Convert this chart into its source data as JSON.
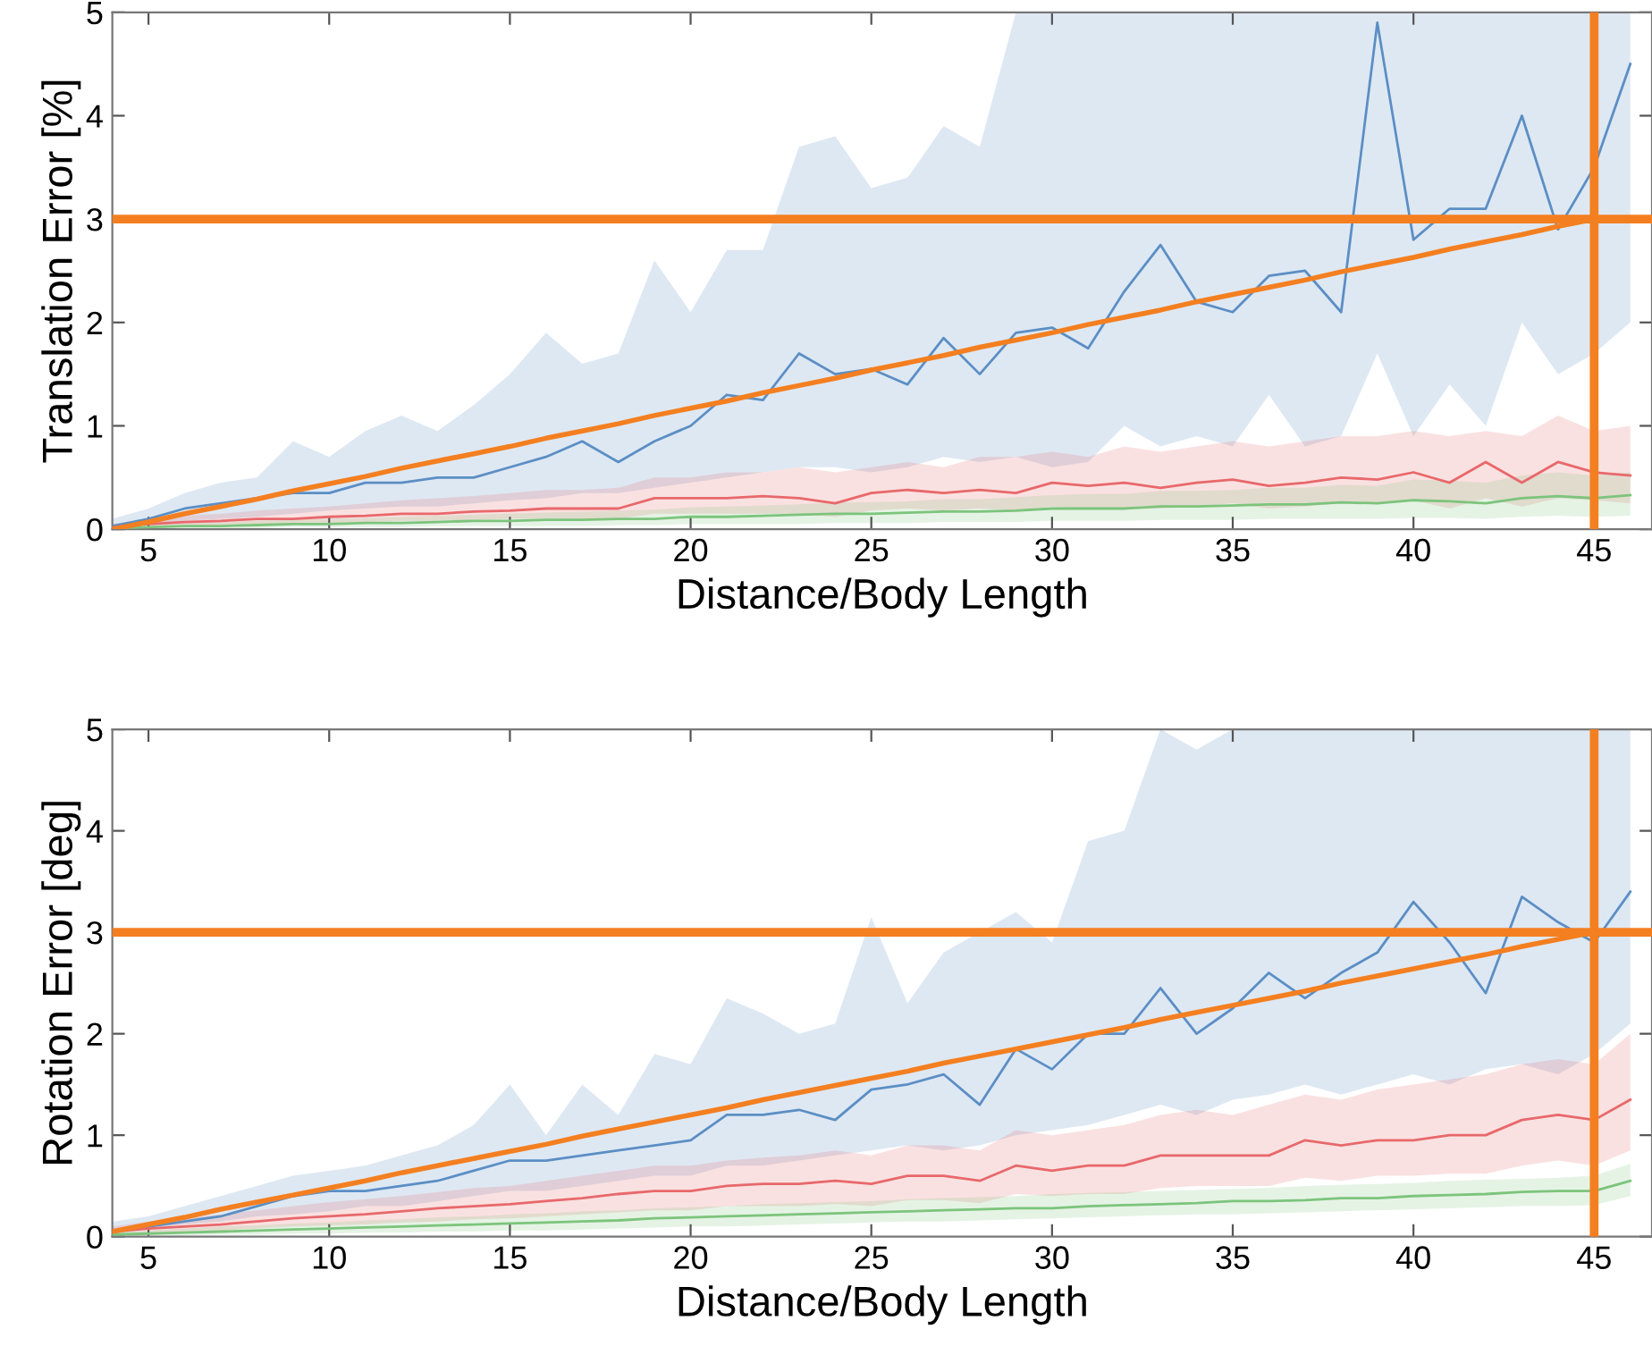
{
  "chart_data": [
    {
      "type": "line",
      "xlabel": "Distance/Body Length",
      "ylabel": "Translation Error [%]",
      "xlim": [
        4,
        46.6
      ],
      "ylim": [
        0,
        5
      ],
      "xticks": [
        5,
        10,
        15,
        20,
        25,
        30,
        35,
        40,
        45
      ],
      "yticks": [
        0,
        1,
        2,
        3,
        4,
        5
      ],
      "grid": false,
      "x": [
        4,
        5,
        6,
        7,
        8,
        9,
        10,
        11,
        12,
        13,
        14,
        15,
        16,
        17,
        18,
        19,
        20,
        21,
        22,
        23,
        24,
        25,
        26,
        27,
        28,
        29,
        30,
        31,
        32,
        33,
        34,
        35,
        36,
        37,
        38,
        39,
        40,
        41,
        42,
        43,
        44,
        45,
        46
      ],
      "series": [
        {
          "color": "#5b8ec4",
          "values": [
            0.03,
            0.1,
            0.2,
            0.25,
            0.3,
            0.35,
            0.35,
            0.45,
            0.45,
            0.5,
            0.5,
            0.6,
            0.7,
            0.85,
            0.65,
            0.85,
            1.0,
            1.3,
            1.25,
            1.7,
            1.5,
            1.55,
            1.4,
            1.85,
            1.5,
            1.9,
            1.95,
            1.75,
            2.3,
            2.75,
            2.2,
            2.1,
            2.45,
            2.5,
            2.1,
            4.9,
            2.8,
            3.1,
            3.1,
            4.0,
            2.9,
            3.5,
            4.5
          ],
          "lower": [
            0,
            0.05,
            0.08,
            0.1,
            0.12,
            0.15,
            0.18,
            0.2,
            0.22,
            0.22,
            0.25,
            0.28,
            0.3,
            0.35,
            0.35,
            0.4,
            0.45,
            0.5,
            0.55,
            0.6,
            0.6,
            0.55,
            0.6,
            0.7,
            0.65,
            0.7,
            0.6,
            0.65,
            1.0,
            0.8,
            0.9,
            0.8,
            1.3,
            0.8,
            0.9,
            1.7,
            0.9,
            1.4,
            1.0,
            2.0,
            1.5,
            1.7,
            2.0
          ],
          "upper": [
            0.1,
            0.2,
            0.35,
            0.45,
            0.5,
            0.85,
            0.7,
            0.95,
            1.1,
            0.95,
            1.2,
            1.5,
            1.9,
            1.6,
            1.7,
            2.6,
            2.1,
            2.7,
            2.7,
            3.7,
            3.8,
            3.3,
            3.4,
            3.9,
            3.7,
            5,
            5,
            5,
            5,
            5,
            5,
            5,
            5,
            5,
            5,
            5,
            5,
            5,
            5,
            5,
            5,
            5,
            5
          ]
        },
        {
          "color": "#e8686b",
          "values": [
            0.02,
            0.05,
            0.07,
            0.08,
            0.1,
            0.1,
            0.12,
            0.13,
            0.15,
            0.15,
            0.17,
            0.18,
            0.2,
            0.2,
            0.2,
            0.3,
            0.3,
            0.3,
            0.32,
            0.3,
            0.25,
            0.35,
            0.38,
            0.35,
            0.38,
            0.35,
            0.45,
            0.42,
            0.45,
            0.4,
            0.45,
            0.48,
            0.42,
            0.45,
            0.5,
            0.48,
            0.55,
            0.45,
            0.65,
            0.45,
            0.65,
            0.55,
            0.52
          ],
          "lower": [
            0,
            0.02,
            0.03,
            0.04,
            0.05,
            0.05,
            0.06,
            0.07,
            0.08,
            0.08,
            0.09,
            0.1,
            0.1,
            0.1,
            0.1,
            0.15,
            0.15,
            0.15,
            0.15,
            0.15,
            0.12,
            0.18,
            0.2,
            0.18,
            0.2,
            0.18,
            0.22,
            0.2,
            0.2,
            0.2,
            0.22,
            0.25,
            0.2,
            0.22,
            0.25,
            0.25,
            0.28,
            0.2,
            0.3,
            0.22,
            0.3,
            0.28,
            0.25
          ],
          "upper": [
            0.05,
            0.1,
            0.13,
            0.15,
            0.18,
            0.2,
            0.22,
            0.25,
            0.28,
            0.3,
            0.32,
            0.35,
            0.38,
            0.38,
            0.4,
            0.5,
            0.5,
            0.55,
            0.55,
            0.6,
            0.55,
            0.6,
            0.65,
            0.6,
            0.7,
            0.7,
            0.75,
            0.7,
            0.8,
            0.75,
            0.8,
            0.85,
            0.8,
            0.85,
            0.9,
            0.9,
            0.95,
            0.9,
            0.95,
            0.9,
            1.1,
            0.95,
            1.0
          ]
        },
        {
          "color": "#7cc47c",
          "values": [
            0.01,
            0.02,
            0.03,
            0.03,
            0.04,
            0.05,
            0.05,
            0.06,
            0.06,
            0.07,
            0.08,
            0.08,
            0.09,
            0.09,
            0.1,
            0.1,
            0.12,
            0.12,
            0.13,
            0.14,
            0.15,
            0.15,
            0.16,
            0.17,
            0.17,
            0.18,
            0.2,
            0.2,
            0.2,
            0.22,
            0.22,
            0.23,
            0.24,
            0.24,
            0.26,
            0.25,
            0.28,
            0.27,
            0.25,
            0.3,
            0.32,
            0.3,
            0.33
          ],
          "lower": [
            0,
            0,
            0.01,
            0.01,
            0.01,
            0.02,
            0.02,
            0.02,
            0.02,
            0.03,
            0.03,
            0.03,
            0.03,
            0.03,
            0.04,
            0.04,
            0.05,
            0.05,
            0.05,
            0.05,
            0.06,
            0.06,
            0.06,
            0.07,
            0.07,
            0.07,
            0.08,
            0.08,
            0.08,
            0.09,
            0.09,
            0.09,
            0.1,
            0.1,
            0.1,
            0.1,
            0.11,
            0.11,
            0.1,
            0.12,
            0.13,
            0.12,
            0.13
          ],
          "upper": [
            0.03,
            0.05,
            0.06,
            0.07,
            0.08,
            0.09,
            0.1,
            0.11,
            0.12,
            0.13,
            0.14,
            0.15,
            0.16,
            0.17,
            0.18,
            0.19,
            0.21,
            0.22,
            0.23,
            0.24,
            0.26,
            0.26,
            0.27,
            0.29,
            0.29,
            0.31,
            0.33,
            0.34,
            0.34,
            0.37,
            0.37,
            0.38,
            0.4,
            0.4,
            0.43,
            0.42,
            0.48,
            0.47,
            0.45,
            0.52,
            0.55,
            0.52,
            0.55
          ]
        },
        {
          "type": "line",
          "color": "#f47f20",
          "values": [
            0,
            0.07,
            0.15,
            0.22,
            0.29,
            0.37,
            0.44,
            0.51,
            0.59,
            0.66,
            0.73,
            0.8,
            0.88,
            0.95,
            1.02,
            1.1,
            1.17,
            1.24,
            1.32,
            1.39,
            1.46,
            1.54,
            1.61,
            1.68,
            1.76,
            1.83,
            1.9,
            1.98,
            2.05,
            2.12,
            2.2,
            2.27,
            2.34,
            2.41,
            2.49,
            2.56,
            2.63,
            2.71,
            2.78,
            2.85,
            2.93,
            3.0,
            null
          ]
        }
      ],
      "ref_lines": [
        {
          "axis": "y",
          "value": 3,
          "color": "#f47f20"
        },
        {
          "axis": "x",
          "value": 45,
          "color": "#f47f20"
        }
      ]
    },
    {
      "type": "line",
      "xlabel": "Distance/Body Length",
      "ylabel": "Rotation Error [deg]",
      "xlim": [
        4,
        46.6
      ],
      "ylim": [
        0,
        5
      ],
      "xticks": [
        5,
        10,
        15,
        20,
        25,
        30,
        35,
        40,
        45
      ],
      "yticks": [
        0,
        1,
        2,
        3,
        4,
        5
      ],
      "grid": false,
      "x": [
        4,
        5,
        6,
        7,
        8,
        9,
        10,
        11,
        12,
        13,
        14,
        15,
        16,
        17,
        18,
        19,
        20,
        21,
        22,
        23,
        24,
        25,
        26,
        27,
        28,
        29,
        30,
        31,
        32,
        33,
        34,
        35,
        36,
        37,
        38,
        39,
        40,
        41,
        42,
        43,
        44,
        45,
        46
      ],
      "series": [
        {
          "color": "#5b8ec4",
          "values": [
            0.05,
            0.1,
            0.15,
            0.2,
            0.3,
            0.4,
            0.45,
            0.45,
            0.5,
            0.55,
            0.65,
            0.75,
            0.75,
            0.8,
            0.85,
            0.9,
            0.95,
            1.2,
            1.2,
            1.25,
            1.15,
            1.45,
            1.5,
            1.6,
            1.3,
            1.85,
            1.65,
            2.0,
            2.0,
            2.45,
            2.0,
            2.25,
            2.6,
            2.35,
            2.6,
            2.8,
            3.3,
            2.9,
            2.4,
            3.35,
            3.1,
            2.9,
            3.4
          ],
          "lower": [
            0.02,
            0.08,
            0.12,
            0.15,
            0.2,
            0.22,
            0.25,
            0.3,
            0.3,
            0.35,
            0.4,
            0.45,
            0.45,
            0.5,
            0.55,
            0.6,
            0.6,
            0.7,
            0.7,
            0.75,
            0.8,
            0.85,
            0.9,
            0.85,
            0.9,
            1.0,
            1.05,
            1.1,
            1.2,
            1.3,
            1.2,
            1.35,
            1.4,
            1.5,
            1.4,
            1.5,
            1.6,
            1.5,
            1.65,
            1.7,
            1.6,
            1.8,
            2.1
          ],
          "upper": [
            0.15,
            0.2,
            0.3,
            0.4,
            0.5,
            0.6,
            0.65,
            0.7,
            0.8,
            0.9,
            1.1,
            1.5,
            1.0,
            1.5,
            1.2,
            1.8,
            1.7,
            2.35,
            2.2,
            2.0,
            2.1,
            3.15,
            2.3,
            2.8,
            3.0,
            3.2,
            2.9,
            3.9,
            4.0,
            5,
            4.8,
            5,
            5,
            5,
            5,
            5,
            5,
            5,
            5,
            5,
            5,
            5,
            5
          ]
        },
        {
          "color": "#e8686b",
          "values": [
            0.05,
            0.08,
            0.1,
            0.12,
            0.15,
            0.18,
            0.2,
            0.22,
            0.25,
            0.28,
            0.3,
            0.32,
            0.35,
            0.38,
            0.42,
            0.45,
            0.45,
            0.5,
            0.52,
            0.52,
            0.55,
            0.52,
            0.6,
            0.6,
            0.55,
            0.7,
            0.65,
            0.7,
            0.7,
            0.8,
            0.8,
            0.8,
            0.8,
            0.95,
            0.9,
            0.95,
            0.95,
            1.0,
            1.0,
            1.15,
            1.2,
            1.15,
            1.35
          ],
          "lower": [
            0.02,
            0.04,
            0.05,
            0.06,
            0.08,
            0.1,
            0.11,
            0.12,
            0.14,
            0.15,
            0.17,
            0.18,
            0.2,
            0.22,
            0.24,
            0.26,
            0.26,
            0.3,
            0.3,
            0.3,
            0.32,
            0.3,
            0.36,
            0.36,
            0.33,
            0.42,
            0.4,
            0.42,
            0.42,
            0.48,
            0.5,
            0.5,
            0.5,
            0.58,
            0.55,
            0.6,
            0.6,
            0.62,
            0.62,
            0.7,
            0.75,
            0.7,
            0.85
          ],
          "upper": [
            0.1,
            0.15,
            0.18,
            0.22,
            0.26,
            0.3,
            0.34,
            0.37,
            0.4,
            0.44,
            0.48,
            0.5,
            0.55,
            0.6,
            0.65,
            0.7,
            0.7,
            0.75,
            0.78,
            0.8,
            0.85,
            0.8,
            0.9,
            0.9,
            0.85,
            1.05,
            1.0,
            1.05,
            1.1,
            1.2,
            1.25,
            1.2,
            1.3,
            1.4,
            1.35,
            1.45,
            1.5,
            1.55,
            1.6,
            1.7,
            1.75,
            1.7,
            2.0
          ]
        },
        {
          "color": "#7cc47c",
          "values": [
            0.02,
            0.03,
            0.04,
            0.05,
            0.06,
            0.07,
            0.08,
            0.09,
            0.1,
            0.11,
            0.12,
            0.13,
            0.14,
            0.15,
            0.16,
            0.18,
            0.19,
            0.2,
            0.21,
            0.22,
            0.23,
            0.24,
            0.25,
            0.26,
            0.27,
            0.28,
            0.28,
            0.3,
            0.31,
            0.32,
            0.33,
            0.35,
            0.35,
            0.36,
            0.38,
            0.38,
            0.4,
            0.41,
            0.42,
            0.44,
            0.45,
            0.45,
            0.55
          ],
          "lower": [
            0,
            0.01,
            0.01,
            0.02,
            0.02,
            0.03,
            0.03,
            0.04,
            0.04,
            0.05,
            0.05,
            0.06,
            0.06,
            0.07,
            0.08,
            0.09,
            0.1,
            0.1,
            0.11,
            0.12,
            0.13,
            0.14,
            0.15,
            0.15,
            0.16,
            0.17,
            0.18,
            0.19,
            0.2,
            0.21,
            0.22,
            0.22,
            0.23,
            0.24,
            0.25,
            0.26,
            0.27,
            0.28,
            0.29,
            0.3,
            0.3,
            0.31,
            0.4
          ],
          "upper": [
            0.05,
            0.06,
            0.08,
            0.1,
            0.11,
            0.13,
            0.14,
            0.16,
            0.17,
            0.19,
            0.2,
            0.22,
            0.23,
            0.25,
            0.26,
            0.28,
            0.29,
            0.3,
            0.32,
            0.33,
            0.34,
            0.35,
            0.37,
            0.38,
            0.39,
            0.4,
            0.42,
            0.43,
            0.44,
            0.45,
            0.46,
            0.47,
            0.48,
            0.5,
            0.51,
            0.52,
            0.53,
            0.55,
            0.56,
            0.57,
            0.58,
            0.6,
            0.72
          ]
        },
        {
          "type": "line",
          "color": "#f47f20",
          "values": [
            0.05,
            0.12,
            0.19,
            0.27,
            0.34,
            0.41,
            0.48,
            0.55,
            0.63,
            0.7,
            0.77,
            0.84,
            0.91,
            0.99,
            1.06,
            1.13,
            1.2,
            1.27,
            1.35,
            1.42,
            1.49,
            1.56,
            1.63,
            1.71,
            1.78,
            1.85,
            1.92,
            1.99,
            2.06,
            2.14,
            2.21,
            2.28,
            2.35,
            2.42,
            2.5,
            2.57,
            2.64,
            2.71,
            2.78,
            2.86,
            2.93,
            3.0,
            null
          ]
        }
      ],
      "ref_lines": [
        {
          "axis": "y",
          "value": 3,
          "color": "#f47f20"
        },
        {
          "axis": "x",
          "value": 45,
          "color": "#f47f20"
        }
      ]
    }
  ]
}
